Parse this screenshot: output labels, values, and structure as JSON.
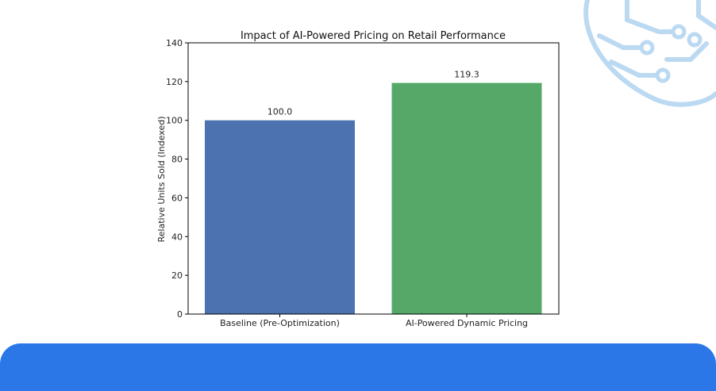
{
  "colors": {
    "bar_colors": [
      "#4c72b0",
      "#55a868"
    ],
    "footer_bar": "#2b77e8",
    "decoration": "#bcd9f2"
  },
  "chart_data": {
    "type": "bar",
    "title": "Impact of AI-Powered Pricing on Retail Performance",
    "xlabel": "",
    "ylabel": "Relative Units Sold (Indexed)",
    "categories": [
      "Baseline (Pre-Optimization)",
      "AI-Powered Dynamic Pricing"
    ],
    "values": [
      100.0,
      119.3
    ],
    "value_labels": [
      "100.0",
      "119.3"
    ],
    "ylim": [
      0,
      140
    ],
    "yticks": [
      0,
      20,
      40,
      60,
      80,
      100,
      120,
      140
    ],
    "grid": false,
    "legend": "none"
  }
}
